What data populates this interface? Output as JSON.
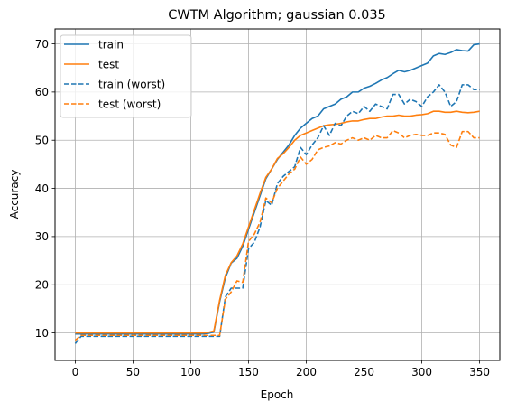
{
  "chart_data": {
    "type": "line",
    "title": "CWTM Algorithm; gaussian 0.035",
    "xlabel": "Epoch",
    "ylabel": "Accuracy",
    "xlim": [
      -17.5,
      367.5
    ],
    "ylim": [
      4.3,
      73.1
    ],
    "xticks": [
      0,
      50,
      100,
      150,
      200,
      250,
      300,
      350
    ],
    "yticks": [
      10,
      20,
      30,
      40,
      50,
      60,
      70
    ],
    "grid": true,
    "legend_position": "top-left",
    "x": [
      0,
      5,
      10,
      15,
      20,
      25,
      30,
      35,
      40,
      45,
      50,
      55,
      60,
      65,
      70,
      75,
      80,
      85,
      90,
      95,
      100,
      105,
      110,
      115,
      120,
      125,
      130,
      135,
      140,
      145,
      150,
      155,
      160,
      165,
      170,
      175,
      180,
      185,
      190,
      195,
      200,
      205,
      210,
      215,
      220,
      225,
      230,
      235,
      240,
      245,
      250,
      255,
      260,
      265,
      270,
      275,
      280,
      285,
      290,
      295,
      300,
      305,
      310,
      315,
      320,
      325,
      330,
      335,
      340,
      345,
      350
    ],
    "series": [
      {
        "name": "train",
        "color": "#1f77b4",
        "style": "solid",
        "values": [
          9.8,
          9.8,
          9.8,
          9.8,
          9.8,
          9.8,
          9.8,
          9.8,
          9.8,
          9.8,
          9.8,
          9.8,
          9.8,
          9.8,
          9.8,
          9.8,
          9.8,
          9.8,
          9.8,
          9.8,
          9.8,
          9.8,
          9.8,
          9.9,
          10.2,
          16.5,
          21.5,
          24.5,
          25.5,
          28.0,
          31.5,
          35.0,
          38.5,
          42.0,
          44.0,
          46.0,
          47.5,
          49.0,
          51.0,
          52.5,
          53.5,
          54.5,
          55.0,
          56.5,
          57.0,
          57.5,
          58.5,
          59.0,
          60.0,
          60.0,
          60.8,
          61.2,
          61.8,
          62.5,
          63.0,
          63.8,
          64.5,
          64.2,
          64.5,
          65.0,
          65.5,
          66.0,
          67.5,
          68.0,
          67.8,
          68.2,
          68.8,
          68.6,
          68.5,
          69.8,
          70.0
        ]
      },
      {
        "name": "test",
        "color": "#ff7f0e",
        "style": "solid",
        "values": [
          10.0,
          10.0,
          10.0,
          10.0,
          10.0,
          10.0,
          10.0,
          10.0,
          10.0,
          10.0,
          10.0,
          10.0,
          10.0,
          10.0,
          10.0,
          10.0,
          10.0,
          10.0,
          10.0,
          10.0,
          10.0,
          10.0,
          10.0,
          10.1,
          10.4,
          16.8,
          22.0,
          24.6,
          26.0,
          28.5,
          32.0,
          35.5,
          39.0,
          42.3,
          44.0,
          46.2,
          47.2,
          48.5,
          50.0,
          51.0,
          51.5,
          52.0,
          52.5,
          53.0,
          53.2,
          53.3,
          53.5,
          53.8,
          54.0,
          54.0,
          54.3,
          54.5,
          54.5,
          54.8,
          55.0,
          55.0,
          55.2,
          55.0,
          55.0,
          55.2,
          55.3,
          55.5,
          56.0,
          56.0,
          55.8,
          55.8,
          56.0,
          55.8,
          55.7,
          55.8,
          56.0
        ]
      },
      {
        "name": "train (worst)",
        "color": "#1f77b4",
        "style": "dashed",
        "values": [
          7.8,
          9.3,
          9.3,
          9.3,
          9.3,
          9.3,
          9.3,
          9.3,
          9.3,
          9.3,
          9.3,
          9.3,
          9.3,
          9.3,
          9.3,
          9.3,
          9.3,
          9.3,
          9.3,
          9.3,
          9.3,
          9.3,
          9.3,
          9.3,
          9.3,
          9.3,
          17.5,
          19.3,
          19.3,
          19.3,
          27.5,
          28.8,
          32.0,
          37.5,
          36.5,
          41.0,
          42.5,
          43.5,
          44.5,
          48.5,
          47.0,
          49.0,
          50.5,
          53.0,
          51.0,
          53.5,
          53.0,
          55.0,
          56.0,
          55.5,
          57.0,
          56.0,
          57.5,
          57.0,
          56.5,
          59.5,
          59.5,
          57.5,
          58.5,
          58.0,
          57.0,
          59.0,
          60.0,
          61.5,
          60.0,
          57.0,
          58.0,
          61.5,
          61.5,
          60.5,
          60.5
        ]
      },
      {
        "name": "test (worst)",
        "color": "#ff7f0e",
        "style": "dashed",
        "values": [
          8.5,
          9.5,
          9.5,
          9.5,
          9.5,
          9.5,
          9.5,
          9.5,
          9.5,
          9.5,
          9.5,
          9.5,
          9.5,
          9.5,
          9.5,
          9.5,
          9.5,
          9.5,
          9.5,
          9.5,
          9.5,
          9.5,
          9.5,
          9.5,
          9.5,
          9.5,
          17.0,
          18.5,
          20.8,
          20.5,
          29.0,
          30.5,
          33.0,
          38.0,
          37.0,
          40.0,
          41.5,
          43.0,
          44.0,
          46.5,
          45.0,
          46.0,
          48.0,
          48.5,
          48.8,
          49.5,
          49.2,
          50.0,
          50.5,
          50.0,
          50.5,
          50.0,
          51.0,
          50.5,
          50.5,
          52.0,
          51.5,
          50.5,
          51.0,
          51.2,
          51.0,
          51.0,
          51.5,
          51.5,
          51.2,
          49.0,
          48.5,
          51.8,
          51.8,
          50.5,
          50.5
        ]
      }
    ]
  }
}
